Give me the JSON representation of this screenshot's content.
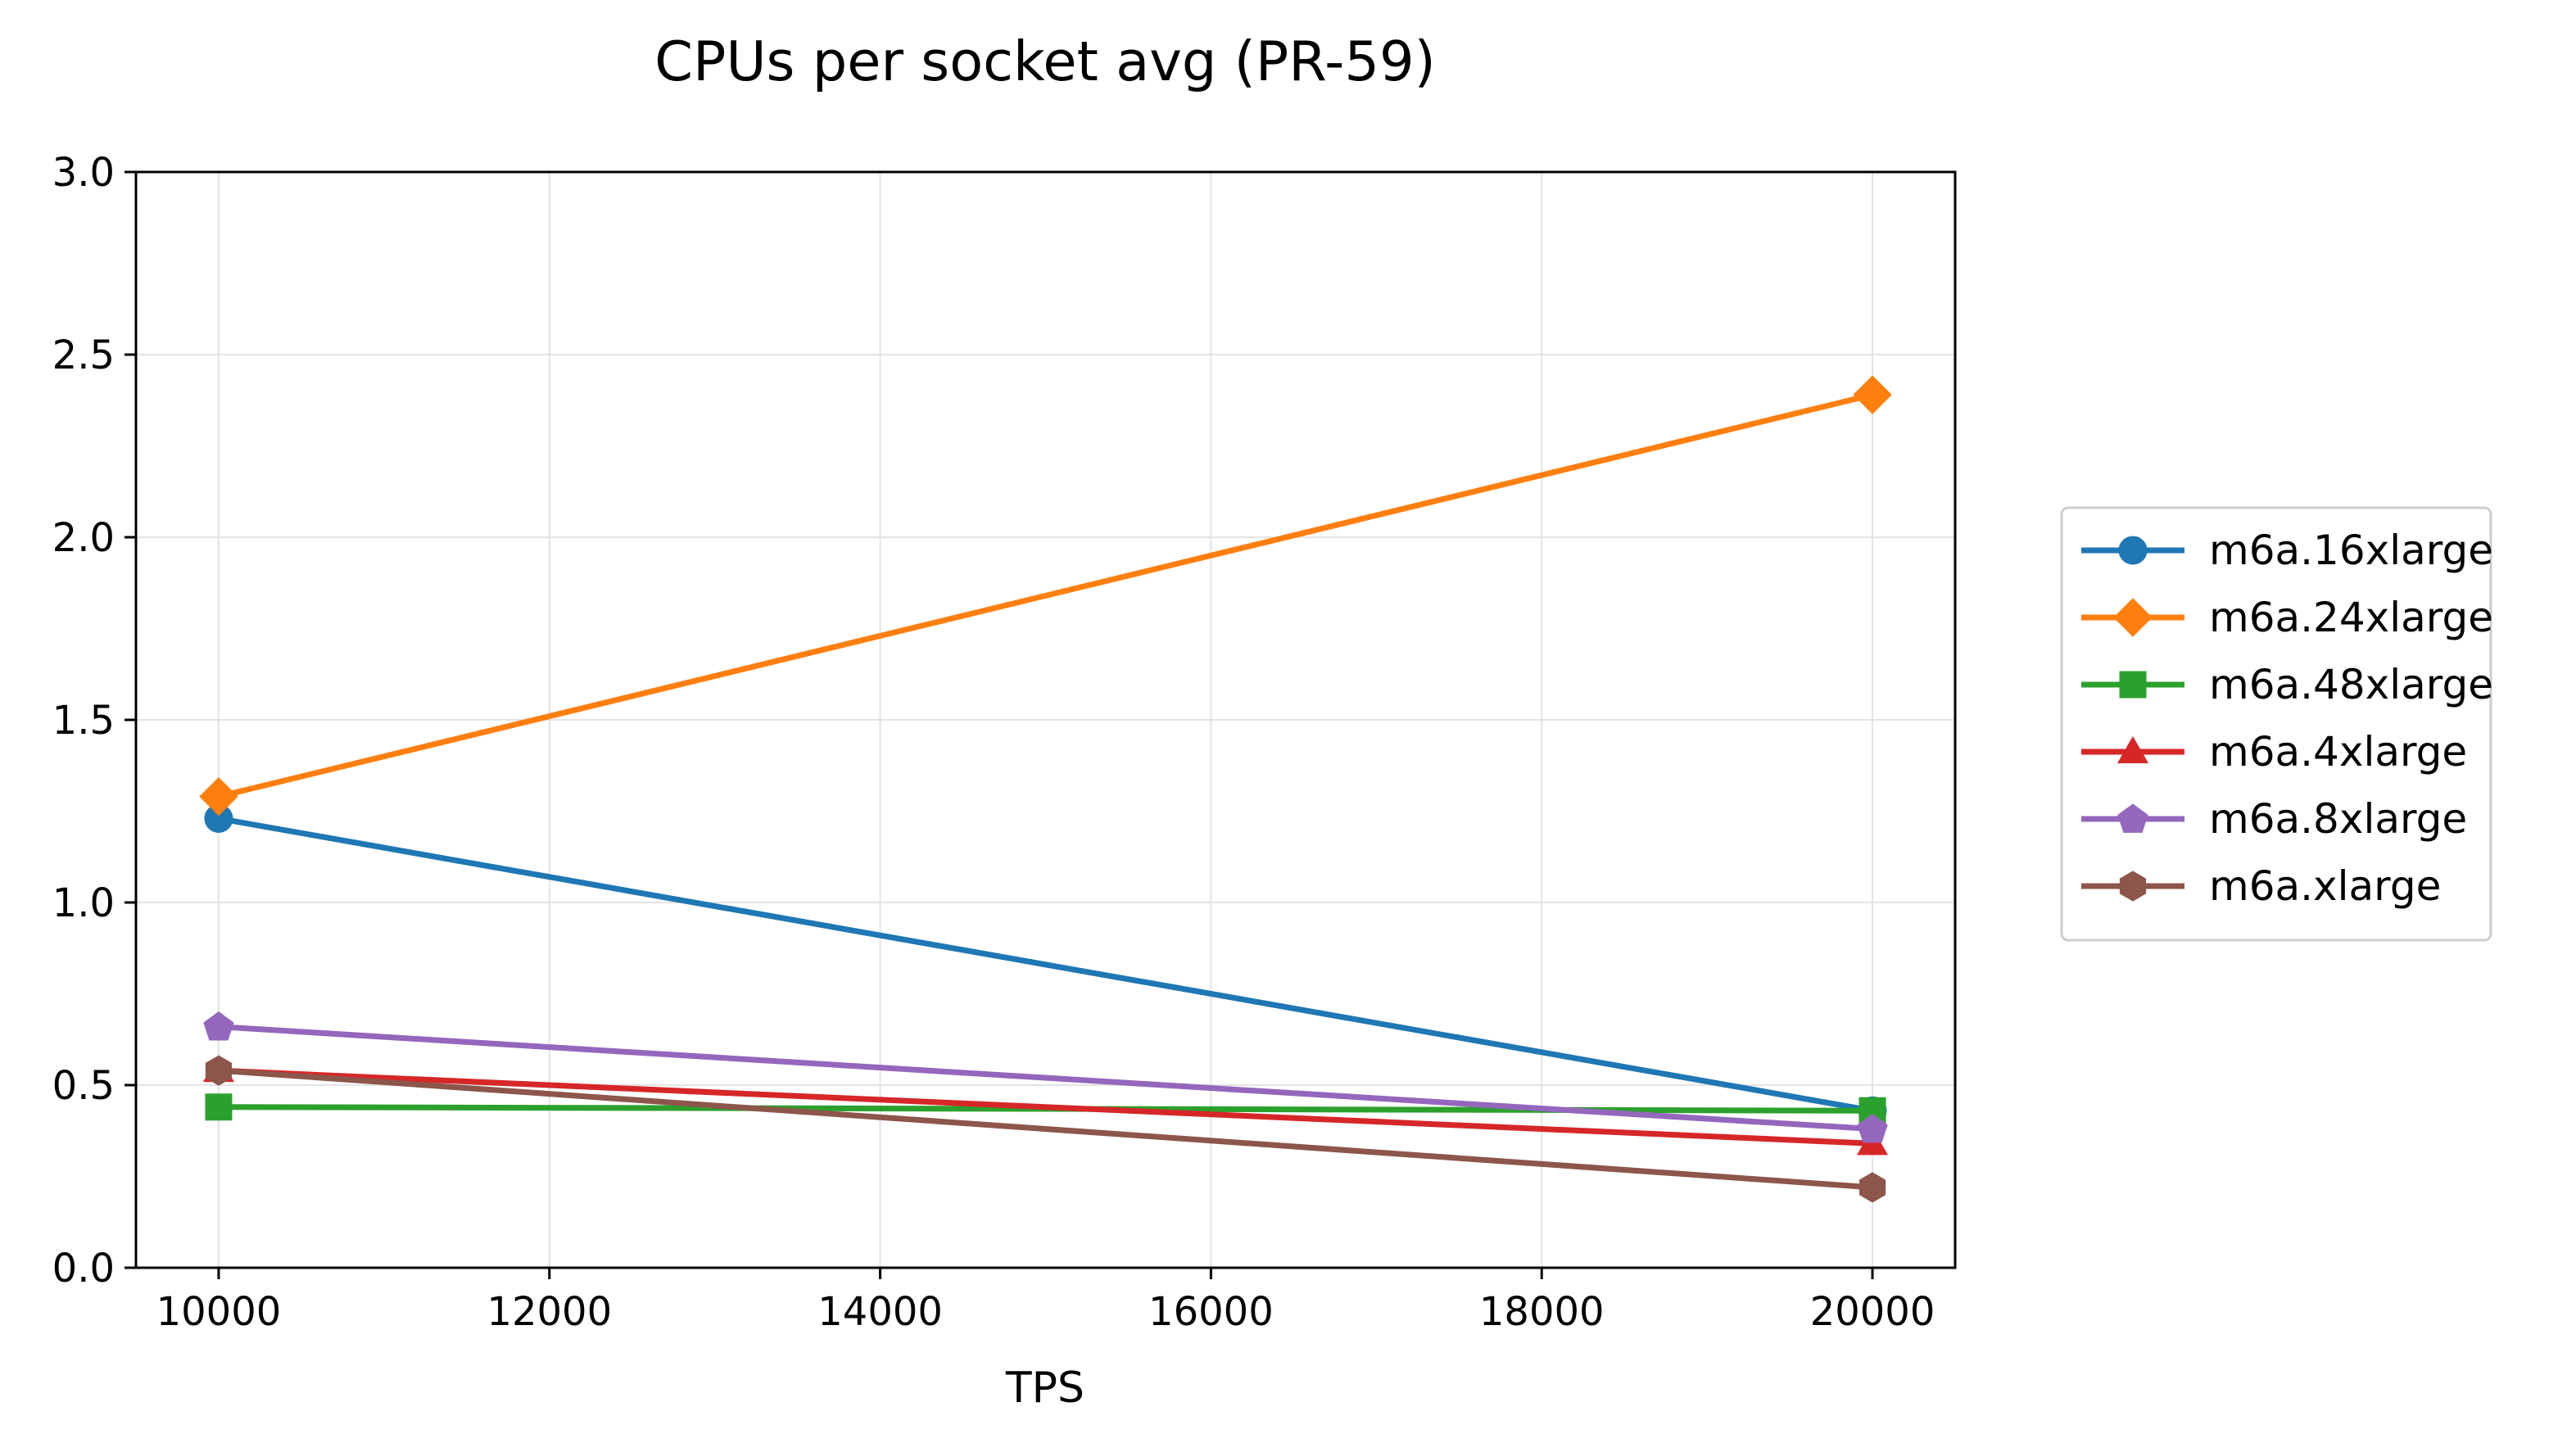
{
  "chart_data": {
    "type": "line",
    "title": "CPUs per socket avg (PR-59)",
    "xlabel": "TPS",
    "ylabel": "",
    "x": [
      10000,
      20000
    ],
    "xlim": [
      9500,
      20500
    ],
    "ylim": [
      0.0,
      3.0
    ],
    "xticks": [
      10000,
      12000,
      14000,
      16000,
      18000,
      20000
    ],
    "xtick_labels": [
      "10000",
      "12000",
      "14000",
      "16000",
      "18000",
      "20000"
    ],
    "yticks": [
      0.0,
      0.5,
      1.0,
      1.5,
      2.0,
      2.5,
      3.0
    ],
    "ytick_labels": [
      "0.0",
      "0.5",
      "1.0",
      "1.5",
      "2.0",
      "2.5",
      "3.0"
    ],
    "grid": true,
    "legend_position": "right",
    "series": [
      {
        "name": "m6a.16xlarge",
        "values": [
          1.23,
          0.43
        ],
        "color": "#1f77b4",
        "marker": "circle"
      },
      {
        "name": "m6a.24xlarge",
        "values": [
          1.29,
          2.39
        ],
        "color": "#ff7f0e",
        "marker": "diamond"
      },
      {
        "name": "m6a.48xlarge",
        "values": [
          0.44,
          0.43
        ],
        "color": "#2ca02c",
        "marker": "square"
      },
      {
        "name": "m6a.4xlarge",
        "values": [
          0.54,
          0.34
        ],
        "color": "#d62728",
        "marker": "triangle"
      },
      {
        "name": "m6a.8xlarge",
        "values": [
          0.66,
          0.38
        ],
        "color": "#9467bd",
        "marker": "pentagon"
      },
      {
        "name": "m6a.xlarge",
        "values": [
          0.54,
          0.22
        ],
        "color": "#8c564b",
        "marker": "hexagon"
      }
    ]
  }
}
